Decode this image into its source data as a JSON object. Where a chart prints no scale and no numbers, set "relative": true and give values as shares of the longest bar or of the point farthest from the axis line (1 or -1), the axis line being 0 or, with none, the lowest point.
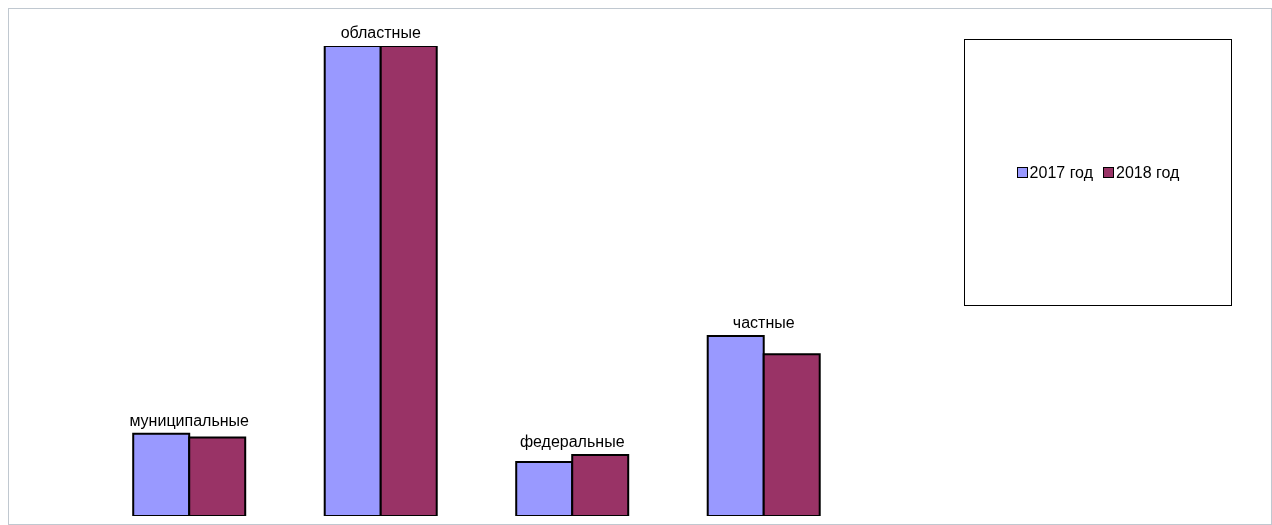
{
  "chart_data": {
    "type": "bar",
    "relative": true,
    "categories": [
      "муниципальные",
      "областные",
      "федеральные",
      "частные"
    ],
    "series": [
      {
        "name": "2017 год",
        "color": "#9999ff",
        "values": [
          0.175,
          1,
          0.115,
          0.383
        ]
      },
      {
        "name": "2018 год",
        "color": "#993366",
        "values": [
          0.167,
          1,
          0.13,
          0.344
        ]
      }
    ],
    "legend": "right",
    "grid": false
  }
}
